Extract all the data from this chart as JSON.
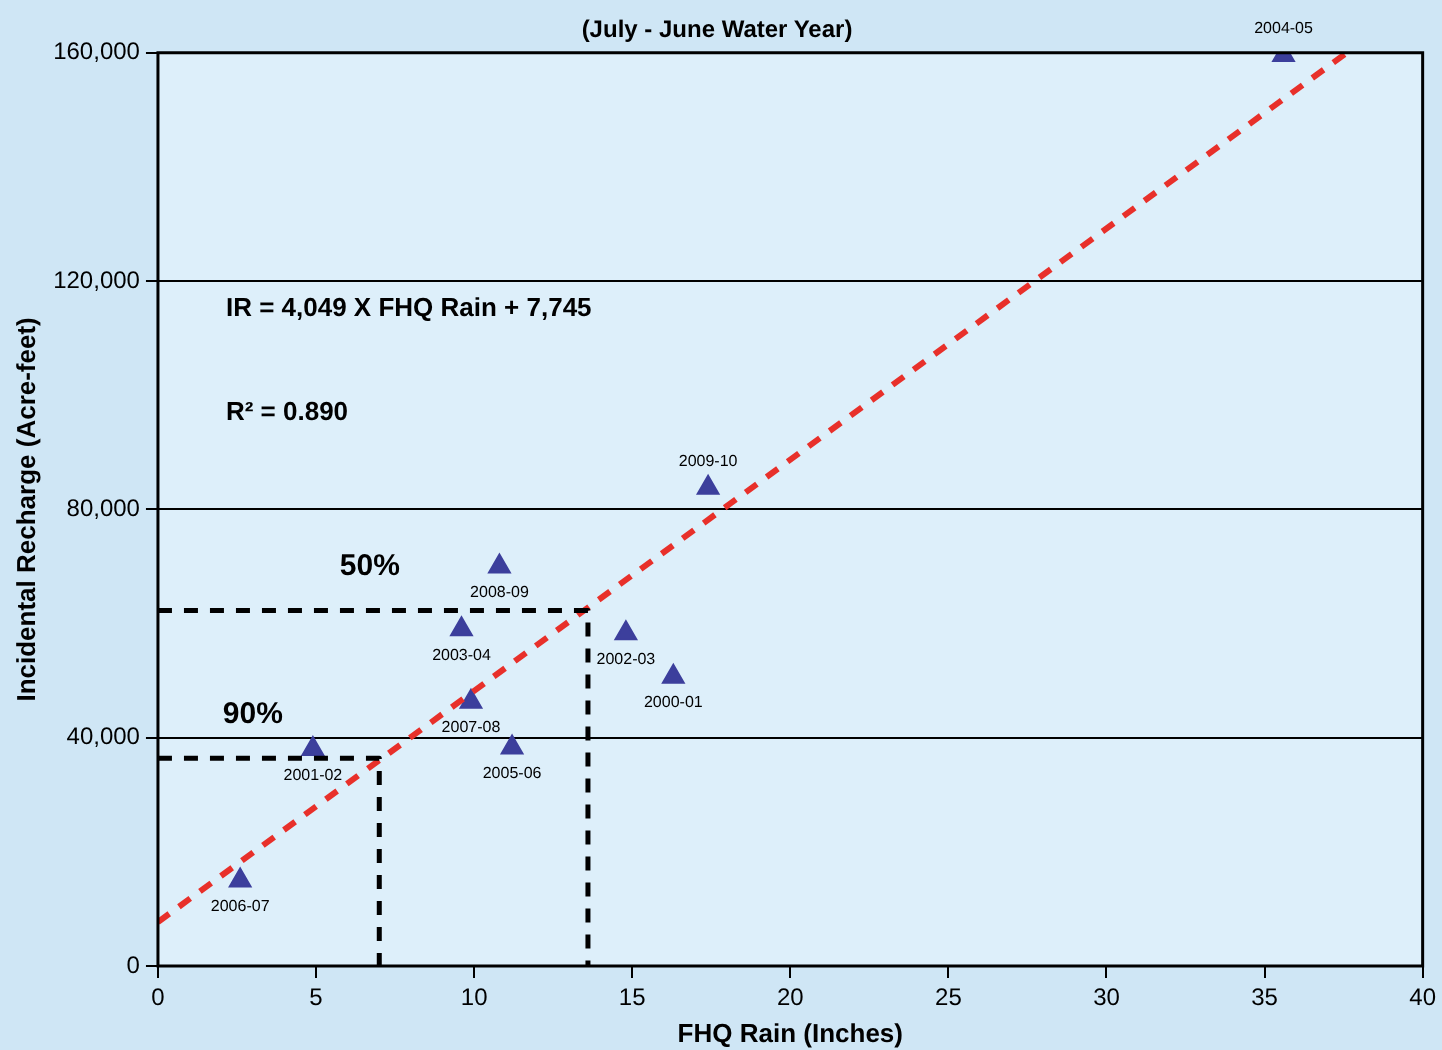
{
  "chart_data": {
    "type": "scatter",
    "title": "(July - June Water Year)",
    "xlabel": "FHQ Rain (Inches)",
    "ylabel": "Incidental Recharge (Acre-feet)",
    "xlim": [
      0,
      40
    ],
    "xticks": [
      0,
      5,
      10,
      15,
      20,
      25,
      30,
      35,
      40
    ],
    "ylim": [
      0,
      160000
    ],
    "yticks": [
      0,
      {
        "value": 40000,
        "label": "40,000"
      },
      {
        "value": 80000,
        "label": "80,000"
      },
      {
        "value": 120000,
        "label": "120,000"
      },
      {
        "value": 160000,
        "label": "160,000"
      }
    ],
    "grid": "y",
    "legend": false,
    "marker": "triangle",
    "series": [
      {
        "color": "#3c3f9c",
        "x": [
          2.6,
          4.9,
          9.9,
          11.2,
          9.6,
          10.8,
          14.8,
          16.3,
          17.4,
          35.6
        ],
        "values": [
          15000,
          38000,
          46300,
          38300,
          59000,
          70000,
          58300,
          50700,
          83800,
          159600
        ]
      },
      {
        "type": "line",
        "color": "#e8302a",
        "line_style": "dashed",
        "marker": "none",
        "x": [
          0,
          37.6
        ],
        "values": [
          7700,
          160000
        ]
      },
      {
        "type": "line",
        "color": "#000000",
        "line_style": "dashed",
        "marker": "none",
        "x": [
          0,
          7,
          7
        ],
        "values": [
          36400,
          36400,
          0
        ]
      },
      {
        "type": "line",
        "color": "#000000",
        "line_style": "dashed",
        "marker": "none",
        "x": [
          0,
          13.6,
          13.6
        ],
        "values": [
          62300,
          62300,
          0
        ]
      }
    ],
    "annotations": [
      "IR = 4,049 X FHQ Rain + 7,745",
      "R² = 0.890",
      {
        "text": "90%",
        "x": 3,
        "y": 36400
      },
      {
        "text": "50%",
        "x": 6.7,
        "y": 62300
      },
      {
        "text": "2006-07",
        "x": 2.6,
        "y": 15000
      },
      {
        "text": "2001-02",
        "x": 4.9,
        "y": 38000
      },
      {
        "text": "2007-08",
        "x": 9.9,
        "y": 46300
      },
      {
        "text": "2005-06",
        "x": 11.2,
        "y": 38300
      },
      {
        "text": "2003-04",
        "x": 9.6,
        "y": 59000
      },
      {
        "text": "2008-09",
        "x": 10.8,
        "y": 70000
      },
      {
        "text": "2002-03",
        "x": 14.8,
        "y": 58300
      },
      {
        "text": "2000-01",
        "x": 16.3,
        "y": 50700
      },
      {
        "text": "2009-10",
        "x": 17.4,
        "y": 83800
      },
      {
        "text": "2004-05",
        "x": 35.6,
        "y": 159600
      }
    ]
  }
}
